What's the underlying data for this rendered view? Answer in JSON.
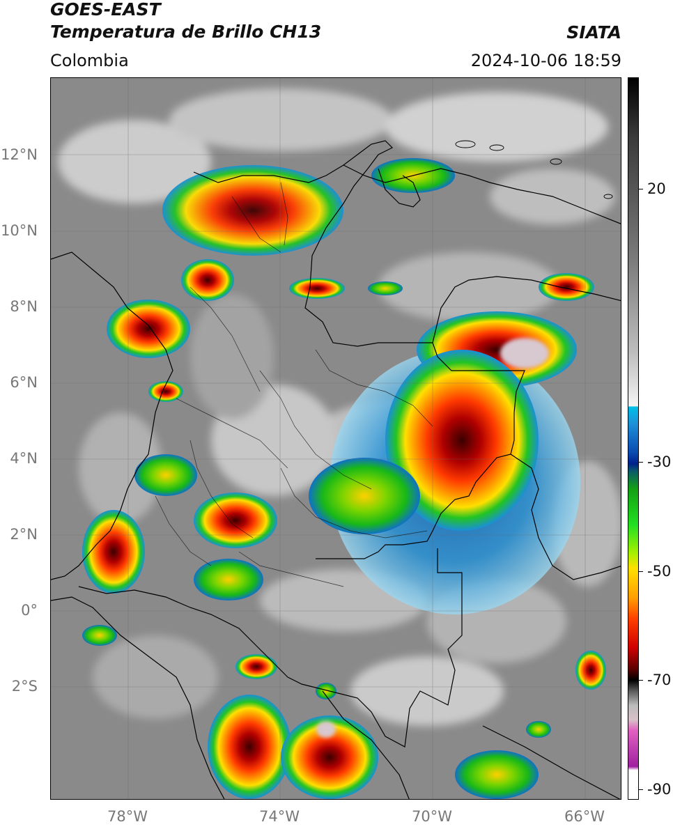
{
  "header": {
    "satellite": "GOES-EAST",
    "product": "Temperatura de Brillo CH13",
    "region": "Colombia",
    "source": "SIATA",
    "datetime": "2024-10-06 18:59"
  },
  "map": {
    "lat_labels": [
      "12°N",
      "10°N",
      "8°N",
      "6°N",
      "4°N",
      "2°N",
      "0°",
      "2°S"
    ],
    "lon_labels": [
      "78°W",
      "74°W",
      "70°W",
      "66°W"
    ],
    "colors": {
      "background_gray": "#8a8a8a",
      "cloud_white": "#e6e6e6",
      "cold_blue": "#1e6fd0",
      "green": "#22c422",
      "yellow": "#ffe000",
      "orange": "#ff8a00",
      "red": "#e01010",
      "dark_red": "#5a0000",
      "borders": "#000000"
    }
  },
  "colorbar": {
    "unit": "",
    "ticks": [
      "20",
      "-30",
      "-50",
      "-70",
      "-90"
    ]
  }
}
